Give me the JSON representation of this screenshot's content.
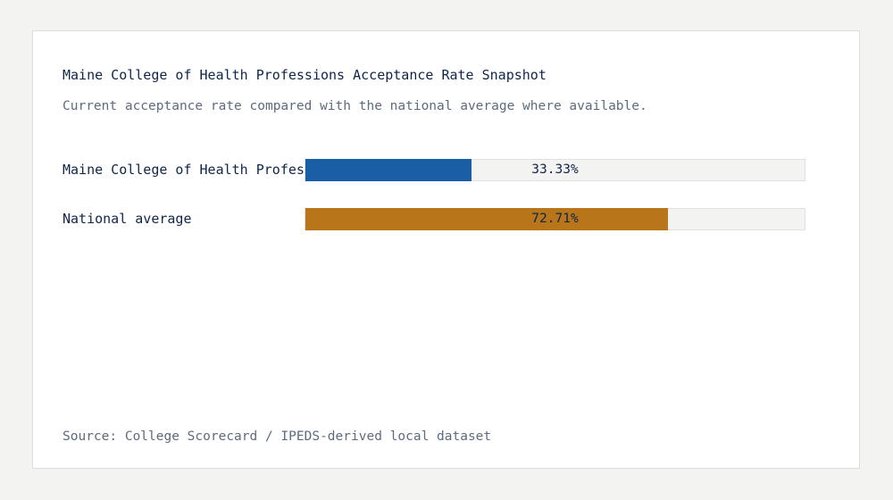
{
  "title": "Maine College of Health Professions Acceptance Rate Snapshot",
  "subtitle": "Current acceptance rate compared with the national average where available.",
  "source": "Source: College Scorecard / IPEDS-derived local dataset",
  "chart_data": {
    "type": "bar",
    "orientation": "horizontal",
    "title": "Maine College of Health Professions Acceptance Rate Snapshot",
    "subtitle": "Current acceptance rate compared with the national average where available.",
    "xlim": [
      0,
      100
    ],
    "grid": false,
    "categories": [
      "Maine College of Health Professions",
      "National average"
    ],
    "values": [
      33.33,
      72.71
    ],
    "value_labels": [
      "33.33%",
      "72.71%"
    ],
    "colors": [
      "#1a5fa6",
      "#b87519"
    ]
  }
}
